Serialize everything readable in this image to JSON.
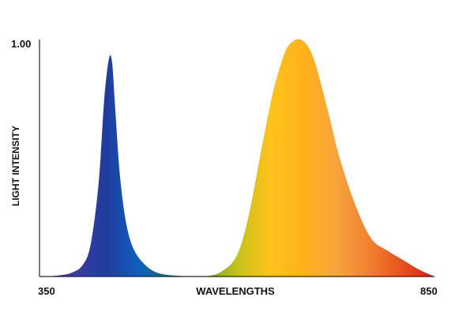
{
  "chart_data": {
    "type": "area",
    "xlabel": "WAVELENGTHS",
    "ylabel": "LIGHT INTENSITY",
    "xlim": [
      350,
      850
    ],
    "ylim": [
      0,
      1.0
    ],
    "x_tick_labels": [
      "350",
      "850"
    ],
    "y_tick_labels": [
      "1.00"
    ],
    "grid": false,
    "series": [
      {
        "x": [
          350,
          370,
          390,
          405,
          415,
          425,
          432,
          438,
          442,
          446,
          452,
          460,
          470,
          485,
          500,
          520,
          540,
          560
        ],
        "values": [
          0.0,
          0.003,
          0.015,
          0.05,
          0.14,
          0.4,
          0.75,
          0.92,
          0.9,
          0.7,
          0.42,
          0.22,
          0.11,
          0.045,
          0.015,
          0.004,
          0.001,
          0.0
        ],
        "colors": [
          "#5a2a8c",
          "#3b3ea6",
          "#1f3c9c",
          "#1160c0",
          "#0f6f6a",
          "#2a5d2c"
        ]
      },
      {
        "x": [
          560,
          580,
          600,
          615,
          630,
          645,
          660,
          670,
          680,
          690,
          700,
          715,
          730,
          750,
          770,
          790,
          810,
          830,
          850
        ],
        "values": [
          0.0,
          0.02,
          0.09,
          0.26,
          0.52,
          0.77,
          0.94,
          0.99,
          1.0,
          0.97,
          0.89,
          0.7,
          0.5,
          0.3,
          0.16,
          0.11,
          0.07,
          0.03,
          0.0
        ],
        "colors": [
          "#7aa81c",
          "#c6c21a",
          "#ffc21a",
          "#ffb21a",
          "#f7a43e",
          "#f28030",
          "#e8531c",
          "#d81b12"
        ]
      }
    ]
  }
}
